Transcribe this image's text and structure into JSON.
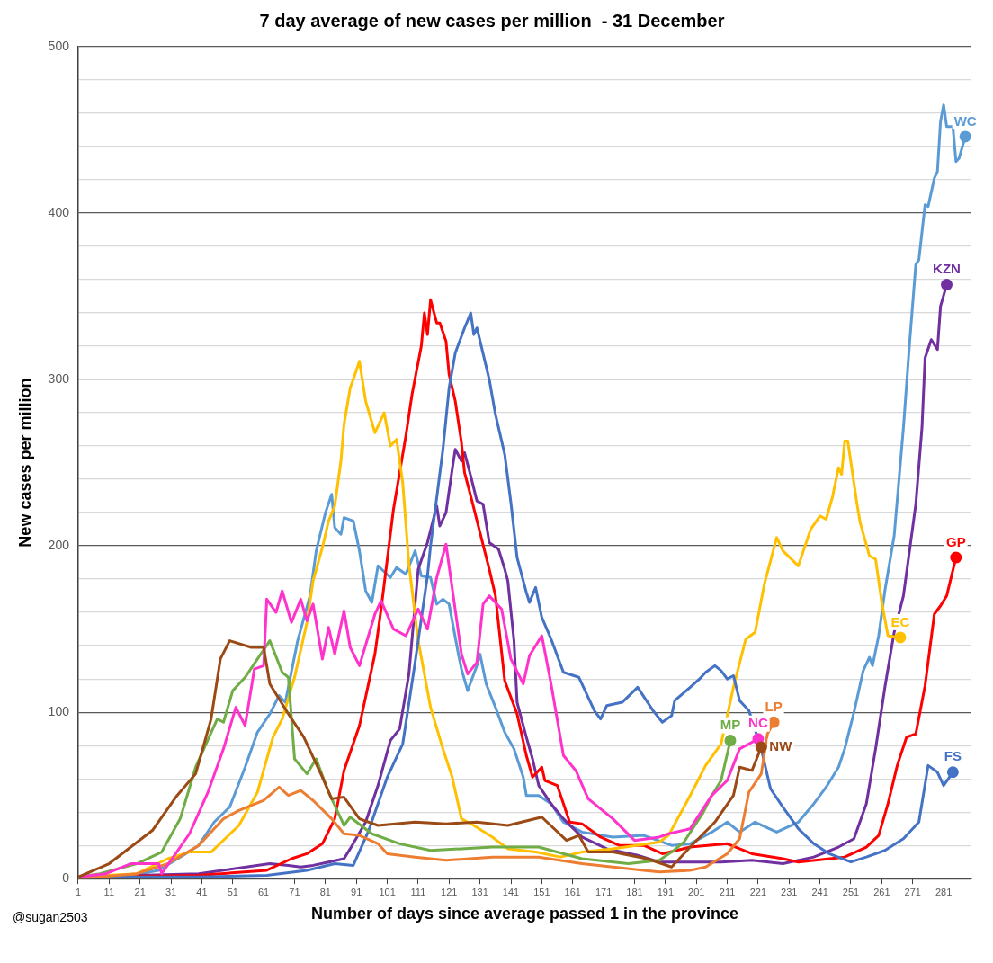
{
  "chart_data": {
    "type": "line",
    "title": "7 day average of new cases per million  - 31 December",
    "xlabel": "Number of days since average passed 1 in the province",
    "ylabel": "New cases per million",
    "annotations": [
      "@sugan2503"
    ],
    "xlim": [
      1,
      290
    ],
    "xticks": [
      1,
      11,
      21,
      31,
      41,
      51,
      61,
      71,
      81,
      91,
      101,
      111,
      121,
      131,
      141,
      151,
      161,
      171,
      181,
      191,
      201,
      211,
      221,
      231,
      241,
      251,
      261,
      271,
      281
    ],
    "ylim": [
      0,
      500
    ],
    "yticks": [
      0,
      {
        "value": 20,
        "label": null
      },
      {
        "value": 40,
        "label": null
      },
      {
        "value": 60,
        "label": null
      },
      {
        "value": 80,
        "label": null
      },
      100,
      {
        "value": 120,
        "label": null
      },
      {
        "value": 140,
        "label": null
      },
      {
        "value": 160,
        "label": null
      },
      {
        "value": 180,
        "label": null
      },
      200,
      {
        "value": 220,
        "label": null
      },
      {
        "value": 240,
        "label": null
      },
      {
        "value": 260,
        "label": null
      },
      {
        "value": 280,
        "label": null
      },
      300,
      {
        "value": 320,
        "label": null
      },
      {
        "value": 340,
        "label": null
      },
      {
        "value": 360,
        "label": null
      },
      {
        "value": 380,
        "label": null
      },
      400,
      {
        "value": 420,
        "label": null
      },
      {
        "value": 440,
        "label": null
      },
      {
        "value": 460,
        "label": null
      },
      {
        "value": 480,
        "label": null
      },
      500
    ],
    "grid": "y",
    "series": [
      {
        "name": "WC",
        "color": "#5b9bd5",
        "x": [
          1,
          18,
          27,
          35,
          40,
          45,
          50,
          55,
          59,
          63,
          66,
          68,
          72,
          76,
          78,
          81,
          83,
          84,
          86,
          87,
          90,
          92,
          94,
          96,
          98,
          102,
          104,
          107,
          110,
          112,
          115,
          117,
          119,
          121,
          124,
          125,
          127,
          130,
          131,
          133,
          136,
          139,
          142,
          145,
          146,
          150,
          154,
          158,
          164,
          174,
          184,
          193,
          199,
          206,
          211,
          215,
          220,
          227,
          234,
          239,
          243,
          247,
          249,
          252,
          255,
          257,
          258,
          260,
          262,
          265,
          268,
          270,
          272,
          273,
          275,
          276,
          278,
          279,
          280,
          281,
          282,
          284,
          285,
          286,
          288
        ],
        "values": [
          1,
          2,
          5,
          14,
          20,
          34,
          43,
          67,
          88,
          99,
          110,
          106,
          143,
          170,
          197,
          220,
          231,
          211,
          207,
          217,
          215,
          197,
          173,
          166,
          188,
          181,
          187,
          183,
          197,
          182,
          181,
          165,
          168,
          165,
          135,
          126,
          113,
          128,
          135,
          117,
          103,
          88,
          78,
          61,
          50,
          50,
          45,
          34,
          28,
          25,
          26,
          20,
          21,
          28,
          34,
          28,
          34,
          28,
          34,
          45,
          55,
          67,
          78,
          100,
          125,
          133,
          128,
          146,
          173,
          206,
          271,
          322,
          369,
          372,
          405,
          404,
          421,
          425,
          455,
          465,
          452,
          452,
          431,
          433,
          446
        ]
      },
      {
        "name": "KZN",
        "color": "#7030a0",
        "x": [
          1,
          40,
          63,
          69,
          73,
          77,
          82,
          87,
          89,
          94,
          98,
          102,
          105,
          108,
          111,
          114,
          117,
          118,
          120,
          122,
          123,
          125,
          126,
          128,
          130,
          132,
          134,
          137,
          139,
          140,
          142,
          143,
          146,
          148,
          150,
          154,
          158,
          164,
          172,
          182,
          189,
          199,
          209,
          219,
          229,
          239,
          247,
          252,
          256,
          259,
          262,
          265,
          268,
          272,
          274,
          275,
          277,
          279,
          280,
          282
        ],
        "values": [
          1,
          3,
          9,
          8,
          7,
          8,
          10,
          12,
          18,
          34,
          56,
          83,
          90,
          123,
          186,
          202,
          224,
          212,
          220,
          246,
          258,
          251,
          256,
          242,
          227,
          225,
          202,
          198,
          186,
          179,
          143,
          106,
          85,
          72,
          56,
          45,
          36,
          25,
          18,
          14,
          10,
          10,
          10,
          11,
          9,
          13,
          19,
          24,
          45,
          78,
          115,
          148,
          170,
          225,
          271,
          313,
          324,
          318,
          344,
          357
        ]
      },
      {
        "name": "GP",
        "color": "#ff0000",
        "x": [
          1,
          40,
          62,
          70,
          75,
          80,
          84,
          87,
          92,
          97,
          99,
          103,
          107,
          109,
          112,
          113,
          114,
          115,
          117,
          118,
          120,
          121,
          123,
          125,
          126,
          128,
          131,
          134,
          136,
          139,
          143,
          146,
          148,
          151,
          152,
          156,
          160,
          164,
          170,
          176,
          184,
          190,
          199,
          211,
          219,
          229,
          234,
          249,
          256,
          260,
          263,
          266,
          269,
          272,
          275,
          278,
          280,
          282,
          285
        ],
        "values": [
          1,
          2,
          5,
          12,
          15,
          21,
          36,
          65,
          92,
          135,
          162,
          222,
          266,
          291,
          320,
          340,
          327,
          348,
          334,
          334,
          323,
          303,
          287,
          262,
          244,
          230,
          208,
          186,
          170,
          119,
          99,
          74,
          61,
          67,
          59,
          56,
          34,
          33,
          25,
          20,
          20,
          15,
          19,
          21,
          15,
          12,
          10,
          13,
          19,
          26,
          45,
          68,
          85,
          87,
          116,
          159,
          164,
          170,
          193
        ]
      },
      {
        "name": "EC",
        "color": "#ffc000",
        "x": [
          1,
          20,
          30,
          37,
          44,
          53,
          59,
          64,
          67,
          71,
          75,
          77,
          80,
          82,
          84,
          86,
          87,
          89,
          90,
          92,
          94,
          97,
          100,
          102,
          104,
          106,
          108,
          111,
          115,
          119,
          122,
          125,
          129,
          135,
          140,
          149,
          157,
          164,
          174,
          189,
          192,
          199,
          204,
          209,
          213,
          217,
          220,
          223,
          227,
          229,
          234,
          238,
          241,
          243,
          245,
          247,
          248,
          249,
          250,
          253,
          254,
          257,
          259,
          261,
          263,
          267
        ],
        "values": [
          1,
          3,
          12,
          16,
          16,
          32,
          52,
          85,
          96,
          121,
          154,
          179,
          199,
          215,
          224,
          251,
          273,
          295,
          300,
          311,
          287,
          268,
          280,
          260,
          264,
          238,
          189,
          143,
          103,
          78,
          61,
          36,
          32,
          25,
          18,
          16,
          13,
          16,
          18,
          22,
          26,
          50,
          68,
          81,
          115,
          144,
          148,
          177,
          205,
          197,
          188,
          210,
          218,
          216,
          229,
          247,
          243,
          263,
          263,
          225,
          214,
          194,
          192,
          166,
          146,
          145
        ]
      },
      {
        "name": "FS",
        "color": "#4472c4",
        "x": [
          1,
          40,
          62,
          75,
          84,
          90,
          95,
          101,
          106,
          110,
          114,
          115,
          119,
          121,
          123,
          126,
          128,
          129,
          130,
          134,
          136,
          139,
          141,
          143,
          146,
          147,
          149,
          151,
          154,
          158,
          163,
          168,
          170,
          172,
          177,
          182,
          187,
          190,
          193,
          194,
          199,
          202,
          204,
          207,
          209,
          211,
          213,
          215,
          218,
          222,
          225,
          229,
          234,
          239,
          244,
          251,
          256,
          262,
          268,
          273,
          276,
          279,
          281,
          284
        ],
        "values": [
          1,
          1,
          2,
          5,
          9,
          8,
          29,
          61,
          81,
          130,
          182,
          200,
          258,
          295,
          316,
          331,
          340,
          327,
          331,
          300,
          279,
          255,
          226,
          193,
          172,
          166,
          175,
          157,
          144,
          124,
          121,
          101,
          96,
          104,
          106,
          115,
          101,
          94,
          98,
          107,
          115,
          120,
          124,
          128,
          125,
          120,
          122,
          107,
          101,
          78,
          54,
          43,
          30,
          21,
          15,
          10,
          13,
          17,
          24,
          34,
          68,
          64,
          56,
          64
        ]
      },
      {
        "name": "LP",
        "color": "#ed7d31",
        "x": [
          1,
          20,
          30,
          40,
          48,
          53,
          61,
          66,
          69,
          73,
          77,
          83,
          87,
          92,
          98,
          101,
          110,
          120,
          135,
          150,
          164,
          184,
          189,
          199,
          204,
          211,
          215,
          218,
          222,
          224,
          226
        ],
        "values": [
          0,
          3,
          9,
          20,
          36,
          41,
          47,
          55,
          50,
          53,
          47,
          36,
          27,
          26,
          21,
          15,
          13,
          11,
          13,
          13,
          9,
          5,
          4,
          5,
          7,
          15,
          24,
          52,
          63,
          87,
          94
        ]
      },
      {
        "name": "MP",
        "color": "#70ad47",
        "x": [
          1,
          8,
          20,
          28,
          34,
          39,
          46,
          48,
          51,
          55,
          59,
          63,
          67,
          69,
          71,
          75,
          78,
          82,
          87,
          89,
          96,
          105,
          115,
          125,
          135,
          150,
          164,
          179,
          189,
          193,
          197,
          203,
          206,
          209,
          212
        ],
        "values": [
          1,
          3,
          9,
          16,
          36,
          67,
          96,
          94,
          113,
          121,
          132,
          143,
          124,
          121,
          72,
          63,
          72,
          52,
          32,
          37,
          27,
          21,
          17,
          18,
          19,
          19,
          12,
          9,
          11,
          16,
          22,
          39,
          50,
          59,
          83
        ]
      },
      {
        "name": "NC",
        "color": "#ff33cc",
        "x": [
          1,
          10,
          18,
          27,
          28,
          37,
          43,
          48,
          52,
          55,
          58,
          61,
          62,
          65,
          67,
          70,
          73,
          75,
          77,
          80,
          82,
          84,
          87,
          89,
          92,
          97,
          99,
          103,
          107,
          111,
          114,
          117,
          120,
          125,
          127,
          130,
          132,
          134,
          138,
          141,
          145,
          147,
          151,
          154,
          158,
          162,
          166,
          174,
          181,
          189,
          192,
          199,
          206,
          211,
          215,
          221
        ],
        "values": [
          1,
          3,
          9,
          9,
          3,
          27,
          52,
          78,
          103,
          92,
          126,
          128,
          168,
          160,
          173,
          154,
          168,
          155,
          165,
          132,
          151,
          135,
          161,
          139,
          128,
          159,
          167,
          150,
          146,
          162,
          150,
          181,
          201,
          135,
          123,
          130,
          165,
          170,
          162,
          132,
          117,
          134,
          146,
          117,
          74,
          65,
          48,
          36,
          23,
          25,
          27,
          30,
          50,
          59,
          78,
          84
        ]
      },
      {
        "name": "NW",
        "color": "#9c4a15",
        "x": [
          1,
          11,
          25,
          33,
          39,
          44,
          47,
          50,
          57,
          61,
          63,
          69,
          74,
          80,
          83,
          87,
          92,
          98,
          110,
          120,
          130,
          140,
          151,
          159,
          163,
          166,
          174,
          185,
          193,
          199,
          207,
          213,
          215,
          219,
          222
        ],
        "values": [
          1,
          9,
          29,
          50,
          63,
          96,
          132,
          143,
          139,
          139,
          117,
          99,
          85,
          61,
          48,
          49,
          36,
          32,
          34,
          33,
          34,
          32,
          37,
          23,
          26,
          16,
          16,
          12,
          7,
          19,
          34,
          50,
          67,
          65,
          79
        ]
      }
    ]
  }
}
